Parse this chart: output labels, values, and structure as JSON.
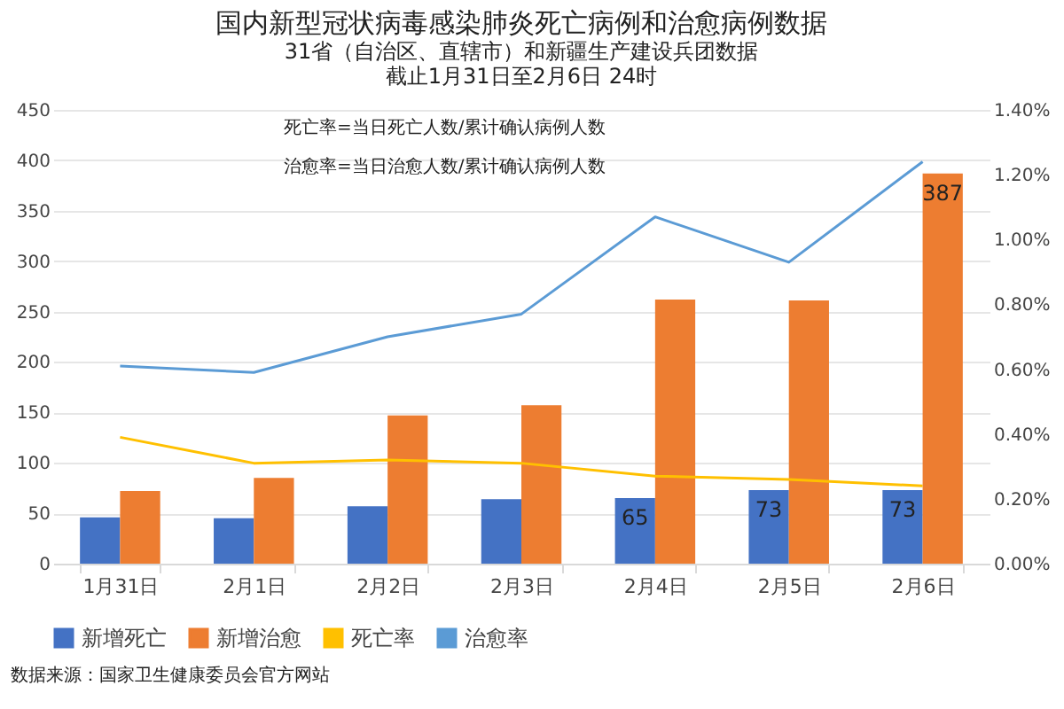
{
  "chart_data": {
    "type": "bar",
    "title": "国内新型冠状病毒感染肺炎死亡病例和治愈病例数据",
    "subtitle": "31省（自治区、直辖市）和新疆生产建设兵团数据截止1月31日至2月6日 24时",
    "categories": [
      "1月31日",
      "2月1日",
      "2月2日",
      "2月3日",
      "2月4日",
      "2月5日",
      "2月6日"
    ],
    "series": [
      {
        "name": "新增死亡",
        "color": "#4472c4",
        "values": [
          46,
          45,
          57,
          64,
          65,
          73,
          73
        ],
        "value_labels": [
          null,
          null,
          null,
          null,
          "65",
          "73",
          "73"
        ]
      },
      {
        "name": "新增治愈",
        "color": "#ed7d31",
        "values": [
          72,
          85,
          147,
          157,
          262,
          261,
          387
        ],
        "value_labels": [
          null,
          null,
          null,
          null,
          null,
          null,
          "387"
        ]
      },
      {
        "name": "死亡率",
        "type": "line",
        "axis": "y2",
        "color": "#ffc000",
        "values": [
          0.39,
          0.31,
          0.32,
          0.31,
          0.27,
          0.26,
          0.24
        ]
      },
      {
        "name": "治愈率",
        "type": "line",
        "axis": "y2",
        "color": "#5b9bd5",
        "values": [
          0.61,
          0.59,
          0.7,
          0.77,
          1.07,
          0.93,
          1.24
        ]
      }
    ],
    "ylim": [
      0,
      450
    ],
    "yticks": [
      0,
      50,
      100,
      150,
      200,
      250,
      300,
      350,
      400,
      450
    ],
    "y2lim": [
      0,
      1.4
    ],
    "y2ticks": [
      {
        "value": 0,
        "label": "0.00%"
      },
      {
        "value": 0.2,
        "label": "0.20%"
      },
      {
        "value": 0.4,
        "label": "0.40%"
      },
      {
        "value": 0.6,
        "label": "0.60%"
      },
      {
        "value": 0.8,
        "label": "0.80%"
      },
      {
        "value": 1.0,
        "label": "1.00%"
      },
      {
        "value": 1.2,
        "label": "1.20%"
      },
      {
        "value": 1.4,
        "label": "1.40%"
      }
    ],
    "grid": "y",
    "legend": "bottom",
    "marker": "none",
    "line_style": "solid",
    "annotations": [
      "死亡率=当日死亡人数/累计确认病例人数",
      "治愈率=当日治愈人数/累计确认病例人数",
      "数据来源：国家卫生健康委员会官方网站"
    ]
  }
}
